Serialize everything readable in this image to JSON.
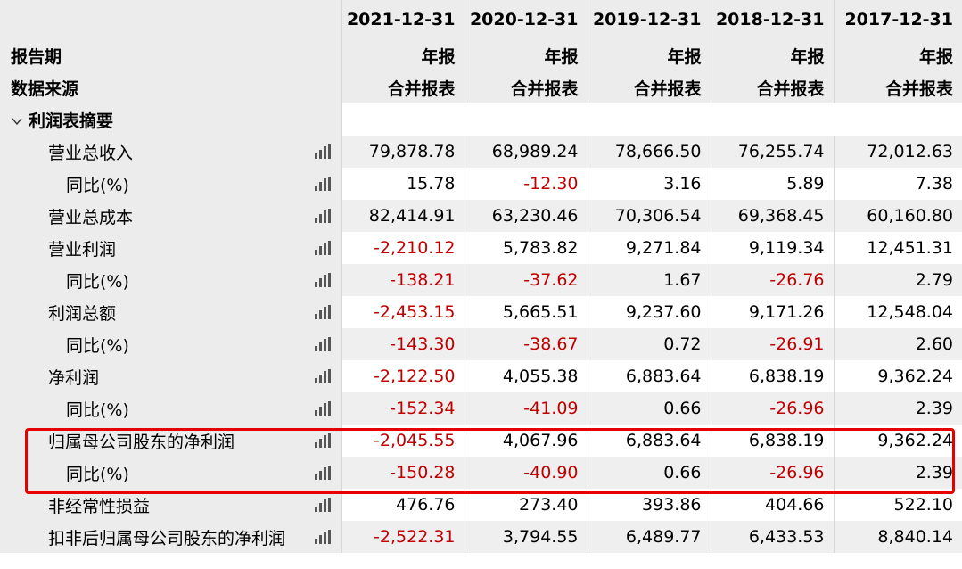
{
  "header": {
    "dates": [
      "2021-12-31",
      "2020-12-31",
      "2019-12-31",
      "2018-12-31",
      "2017-12-31"
    ],
    "report_period_label": "报告期",
    "report_type": [
      "年报",
      "年报",
      "年报",
      "年报",
      "年报"
    ],
    "data_source_label": "数据来源",
    "data_source": [
      "合并报表",
      "合并报表",
      "合并报表",
      "合并报表",
      "合并报表"
    ]
  },
  "section": {
    "title": "利润表摘要"
  },
  "rows": [
    {
      "label": "营业总收入",
      "values": [
        "79,878.78",
        "68,989.24",
        "78,666.50",
        "76,255.74",
        "72,012.63"
      ]
    },
    {
      "label": "同比(%)",
      "values": [
        "15.78",
        "-12.30",
        "3.16",
        "5.89",
        "7.38"
      ]
    },
    {
      "label": "营业总成本",
      "values": [
        "82,414.91",
        "63,230.46",
        "70,306.54",
        "69,368.45",
        "60,160.80"
      ]
    },
    {
      "label": "营业利润",
      "values": [
        "-2,210.12",
        "5,783.82",
        "9,271.84",
        "9,119.34",
        "12,451.31"
      ]
    },
    {
      "label": "同比(%)",
      "values": [
        "-138.21",
        "-37.62",
        "1.67",
        "-26.76",
        "2.79"
      ]
    },
    {
      "label": "利润总额",
      "values": [
        "-2,453.15",
        "5,665.51",
        "9,237.60",
        "9,171.26",
        "12,548.04"
      ]
    },
    {
      "label": "同比(%)",
      "values": [
        "-143.30",
        "-38.67",
        "0.72",
        "-26.91",
        "2.60"
      ]
    },
    {
      "label": "净利润",
      "values": [
        "-2,122.50",
        "4,055.38",
        "6,883.64",
        "6,838.19",
        "9,362.24"
      ]
    },
    {
      "label": "同比(%)",
      "values": [
        "-152.34",
        "-41.09",
        "0.66",
        "-26.96",
        "2.39"
      ]
    },
    {
      "label": "归属母公司股东的净利润",
      "values": [
        "-2,045.55",
        "4,067.96",
        "6,883.64",
        "6,838.19",
        "9,362.24"
      ]
    },
    {
      "label": "同比(%)",
      "values": [
        "-150.28",
        "-40.90",
        "0.66",
        "-26.96",
        "2.39"
      ]
    },
    {
      "label": "非经常性损益",
      "values": [
        "476.76",
        "273.40",
        "393.86",
        "404.66",
        "522.10"
      ]
    },
    {
      "label": "扣非后归属母公司股东的净利润",
      "values": [
        "-2,522.31",
        "3,794.55",
        "6,489.77",
        "6,433.53",
        "8,840.14"
      ]
    }
  ],
  "colors": {
    "negative": "#c00000",
    "highlight": "#e60000",
    "label_bg": "#ececec"
  },
  "icons": {
    "row_chart": "bar-chart-icon",
    "section_toggle": "chevron-down-icon"
  }
}
